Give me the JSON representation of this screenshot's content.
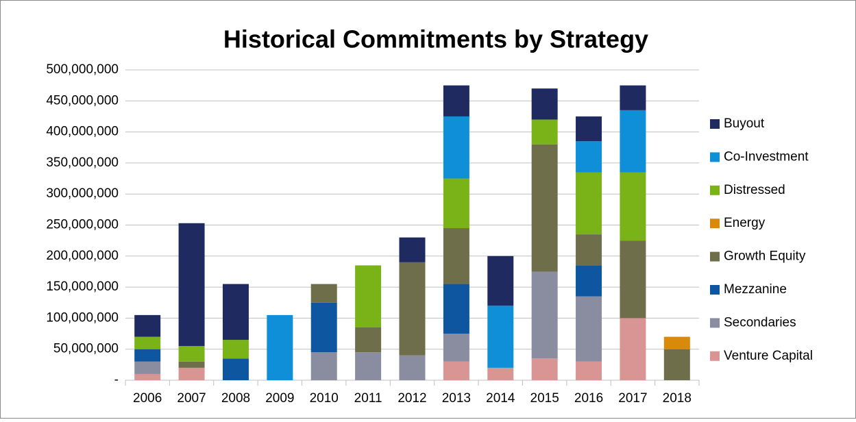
{
  "chart_data": {
    "type": "stacked_bar",
    "title": "Historical Commitments by Strategy",
    "categories": [
      "2006",
      "2007",
      "2008",
      "2009",
      "2010",
      "2011",
      "2012",
      "2013",
      "2014",
      "2015",
      "2016",
      "2017",
      "2018"
    ],
    "series": [
      {
        "name": "Buyout",
        "color": "#1f2a60",
        "values": [
          35000000,
          198000000,
          90000000,
          0,
          0,
          0,
          40000000,
          50000000,
          80000000,
          50000000,
          40000000,
          40000000,
          0
        ]
      },
      {
        "name": "Co-Investment",
        "color": "#0f8fd8",
        "values": [
          0,
          0,
          0,
          105000000,
          0,
          0,
          0,
          100000000,
          100000000,
          0,
          50000000,
          100000000,
          0
        ]
      },
      {
        "name": "Distressed",
        "color": "#7ab317",
        "values": [
          20000000,
          25000000,
          30000000,
          0,
          0,
          100000000,
          0,
          80000000,
          0,
          40000000,
          100000000,
          110000000,
          0
        ]
      },
      {
        "name": "Energy",
        "color": "#d98a0a",
        "values": [
          0,
          0,
          0,
          0,
          0,
          0,
          0,
          0,
          0,
          0,
          0,
          0,
          20000000
        ]
      },
      {
        "name": "Growth Equity",
        "color": "#6f6e4b",
        "values": [
          0,
          10000000,
          0,
          0,
          30000000,
          40000000,
          150000000,
          90000000,
          0,
          205000000,
          50000000,
          125000000,
          50000000
        ]
      },
      {
        "name": "Mezzanine",
        "color": "#0e56a0",
        "values": [
          20000000,
          0,
          35000000,
          0,
          80000000,
          0,
          0,
          80000000,
          0,
          0,
          50000000,
          0,
          0
        ]
      },
      {
        "name": "Secondaries",
        "color": "#8a8ca0",
        "values": [
          20000000,
          0,
          0,
          0,
          45000000,
          45000000,
          40000000,
          45000000,
          0,
          140000000,
          105000000,
          0,
          0
        ]
      },
      {
        "name": "Venture Capital",
        "color": "#d99494",
        "values": [
          10000000,
          20000000,
          0,
          0,
          0,
          0,
          0,
          30000000,
          20000000,
          35000000,
          30000000,
          100000000,
          0
        ]
      }
    ],
    "ylim": [
      0,
      500000000
    ],
    "yticks": [
      {
        "value": 0,
        "label": "-"
      },
      {
        "value": 50000000,
        "label": "50,000,000"
      },
      {
        "value": 100000000,
        "label": "100,000,000"
      },
      {
        "value": 150000000,
        "label": "150,000,000"
      },
      {
        "value": 200000000,
        "label": "200,000,000"
      },
      {
        "value": 250000000,
        "label": "250,000,000"
      },
      {
        "value": 300000000,
        "label": "300,000,000"
      },
      {
        "value": 350000000,
        "label": "350,000,000"
      },
      {
        "value": 400000000,
        "label": "400,000,000"
      },
      {
        "value": 450000000,
        "label": "450,000,000"
      },
      {
        "value": 500000000,
        "label": "500,000,000"
      }
    ],
    "grid": true,
    "legend": "right"
  }
}
